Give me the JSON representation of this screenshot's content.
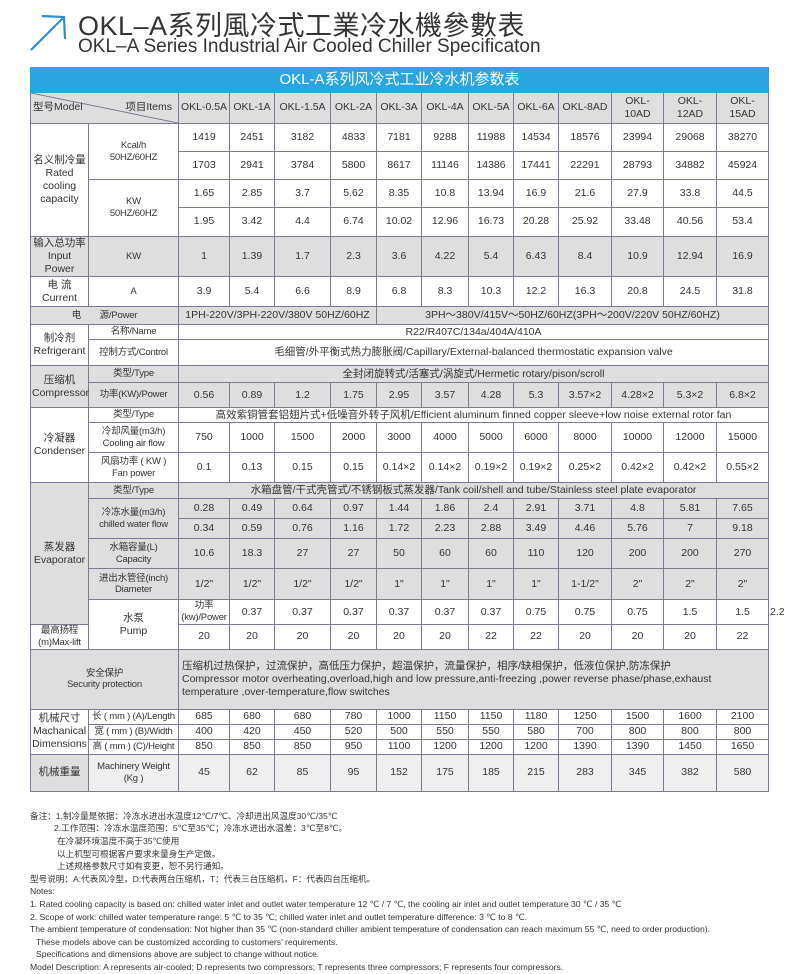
{
  "heading": {
    "title_cn": "OKL–A系列風冷式工業冷水機參數表",
    "title_en": "OKL–A Series Industrial Air Cooled Chiller Specificaton",
    "accent_color": "#29a6e2",
    "icon": "arrow-up-right-icon"
  },
  "table": {
    "title": "OKL-A系列风冷式工业冷水机参数表",
    "model_label": "型号Model",
    "items_label": "项目Items",
    "models": [
      "OKL-0.5A",
      "OKL-1A",
      "OKL-1.5A",
      "OKL-2A",
      "OKL-3A",
      "OKL-4A",
      "OKL-5A",
      "OKL-6A",
      "OKL-8AD",
      "OKL-10AD",
      "OKL-12AD",
      "OKL-15AD"
    ],
    "cooling": {
      "group": "名义制冷量\nRated\ncooling\ncapacity",
      "kcal_label": "Kcal/h\n50HZ/60HZ",
      "kcal_50": [
        "1419",
        "2451",
        "3182",
        "4833",
        "7181",
        "9288",
        "11988",
        "14534",
        "18576",
        "23994",
        "29068",
        "38270"
      ],
      "kcal_60": [
        "1703",
        "2941",
        "3784",
        "5800",
        "8617",
        "11146",
        "14386",
        "17441",
        "22291",
        "28793",
        "34882",
        "45924"
      ],
      "kw_label": "KW\n50HZ/60HZ",
      "kw_50": [
        "1.65",
        "2.85",
        "3.7",
        "5.62",
        "8.35",
        "10.8",
        "13.94",
        "16.9",
        "21.6",
        "27.9",
        "33.8",
        "44.5"
      ],
      "kw_60": [
        "1.95",
        "3.42",
        "4.4",
        "6.74",
        "10.02",
        "12.96",
        "16.73",
        "20.28",
        "25.92",
        "33.48",
        "40.56",
        "53.4"
      ]
    },
    "input_power": {
      "group": "输入总功率\nInput Power",
      "unit": "KW",
      "values": [
        "1",
        "1.39",
        "1.7",
        "2.3",
        "3.6",
        "4.22",
        "5.4",
        "6.43",
        "8.4",
        "10.9",
        "12.94",
        "16.9"
      ]
    },
    "current": {
      "group": "电 流\nCurrent",
      "unit": "A",
      "values": [
        "3.9",
        "5.4",
        "6.6",
        "8.9",
        "6.8",
        "8.3",
        "10.3",
        "12.2",
        "16.3",
        "20.8",
        "24.5",
        "31.8"
      ]
    },
    "power": {
      "label": "电　　源/Power",
      "small": "1PH-220V/3PH-220V/380V 50HZ/60HZ",
      "large": "3PH～380V/415V～50HZ/60HZ(3PH～200V/220V  50HZ/60HZ)"
    },
    "refrigerant": {
      "group": "制冷剂\nRefrigerant",
      "name_label": "名称/Name",
      "name": "R22/R407C/134a/404A/410A",
      "control_label": "控制方式/Control",
      "control": "毛细管/外平衡式热力膨胀阀/Capillary/External-balanced thermostatic expansion valve"
    },
    "compressor": {
      "group": "压缩机\nCompressor",
      "type_label": "类型/Type",
      "type": "全封闭旋转式/活塞式/涡旋式/Hermetic rotary/pison/scroll",
      "power_label": "功率(KW)/Power",
      "power": [
        "0.56",
        "0.89",
        "1.2",
        "1.75",
        "2.95",
        "3.57",
        "4.28",
        "5.3",
        "3.57×2",
        "4.28×2",
        "5.3×2",
        "6.8×2"
      ]
    },
    "condenser": {
      "group": "冷凝器\nCondenser",
      "type_label": "类型/Type",
      "type": "高效紫铜管套铝翅片式+低噪音外转子风机/Efficient aluminum finned copper sleeve+low noise external rotor fan",
      "airflow_label": "冷却风量(m3/h)\nCooling air flow",
      "airflow": [
        "750",
        "1000",
        "1500",
        "2000",
        "3000",
        "4000",
        "5000",
        "6000",
        "8000",
        "10000",
        "12000",
        "15000"
      ],
      "fan_label": "风扇功率 ( KW )\nFan power",
      "fan": [
        "0.1",
        "0.13",
        "0.15",
        "0.15",
        "0.14×2",
        "0.14×2",
        "0.19×2",
        "0.19×2",
        "0.25×2",
        "0.42×2",
        "0.42×2",
        "0.55×2"
      ]
    },
    "evaporator": {
      "group": "蒸发器\nEvaporator",
      "type_label": "类型/Type",
      "type": "水箱盘管/干式壳管式/不锈钢板式蒸发器/Tank coil/shell and tube/Stainless steel plate evaporator",
      "flow_label": "冷冻水量(m3/h)\nchilled water flow",
      "flow_50": [
        "0.28",
        "0.49",
        "0.64",
        "0.97",
        "1.44",
        "1.86",
        "2.4",
        "2.91",
        "3.71",
        "4.8",
        "5.81",
        "7.65"
      ],
      "flow_60": [
        "0.34",
        "0.59",
        "0.76",
        "1.16",
        "1.72",
        "2.23",
        "2.88",
        "3.49",
        "4.46",
        "5.76",
        "7",
        "9.18"
      ],
      "capacity_label": "水箱容量(L)\nCapacity",
      "capacity": [
        "10.6",
        "18.3",
        "27",
        "27",
        "50",
        "60",
        "60",
        "110",
        "120",
        "200",
        "200",
        "270"
      ],
      "diameter_label": "进出水管径(inch)\nDiameter",
      "diameter": [
        "1/2\"",
        "1/2\"",
        "1/2\"",
        "1/2\"",
        "1\"",
        "1\"",
        "1\"",
        "1\"",
        "1-1/2\"",
        "2\"",
        "2\"",
        "2\""
      ]
    },
    "pump": {
      "group": "水泵\nPump",
      "power_label": "功率(kw)/Power",
      "power": [
        "0.37",
        "0.37",
        "0.37",
        "0.37",
        "0.37",
        "0.37",
        "0.75",
        "0.75",
        "0.75",
        "1.5",
        "1.5",
        "2.2"
      ],
      "lift_label": "最高扬程(m)Max-lift",
      "lift": [
        "20",
        "20",
        "20",
        "20",
        "20",
        "20",
        "22",
        "22",
        "20",
        "20",
        "20",
        "22"
      ]
    },
    "security": {
      "label": "安全保护\nSecurity protection",
      "text": "压缩机过热保护，过流保护，高低压力保护，超温保护，流量保护，相序/缺相保护，低液位保护,防冻保护\nCompressor motor overheating,overload,high and low pressure,anti-freezing ,power reverse phase/phase,exhaust temperature ,over-temperature,flow switches"
    },
    "dimensions": {
      "group": "机械尺寸\nMachanical\nDimensions",
      "length_label": "长 ( mm ) (A)/Length",
      "length": [
        "685",
        "680",
        "680",
        "780",
        "1000",
        "1150",
        "1150",
        "1180",
        "1250",
        "1500",
        "1600",
        "2100"
      ],
      "width_label": "宽 ( mm ) (B)/Width",
      "width": [
        "400",
        "420",
        "450",
        "520",
        "500",
        "550",
        "550",
        "580",
        "700",
        "800",
        "800",
        "800"
      ],
      "height_label": "高 ( mm ) (C)/Height",
      "height": [
        "850",
        "850",
        "850",
        "950",
        "1100",
        "1200",
        "1200",
        "1200",
        "1390",
        "1390",
        "1450",
        "1650"
      ]
    },
    "weight": {
      "group": "机械重量",
      "label": "Machinery Weight\n(Kg )",
      "values": [
        "45",
        "62",
        "85",
        "95",
        "152",
        "175",
        "185",
        "215",
        "283",
        "345",
        "382",
        "580"
      ]
    }
  },
  "notes": [
    "备注：1.制冷量是依据：冷冻水进出水温度12℃/7℃、冷却进出风温度30℃/35℃",
    "2.工作范围：冷冻水温度范围：5℃至35℃；冷冻水进出水温差：3℃至8℃。",
    "在冷凝环境温度不高于35℃使用",
    "以上机型可根据客户要求来量身生产定做。",
    "上述规格参数尺寸如有变更，恕不另行通知。",
    "型号说明：A:代表风冷型，D:代表两台压缩机，T：代表三台压缩机，F：代表四台压缩机。",
    "Notes:",
    "1. Rated cooling capacity is based on: chilled water inlet and outlet water temperature 12 ℃ / 7 ℃, the cooling air inlet and outlet temperature 30 ℃ / 35 ℃",
    "2. Scope of work: chilled water temperature range: 5 ℃ to 35 ℃; chilled water inlet and outlet temperature difference: 3 ℃ to 8 ℃.",
    "The ambient temperature of condensation: Not higher than 35 ℃ (non-standard chiller ambient temperature of condensation can reach maximum 55 ℃, need to order production).",
    "These models above can be customized according to customers’ requirements.",
    "Specifications and dimensions above are subject to change without notice.",
    "Model Description: A represents air-cooled; D represents two compressors; T represents three compressors; F represents four compressors."
  ]
}
